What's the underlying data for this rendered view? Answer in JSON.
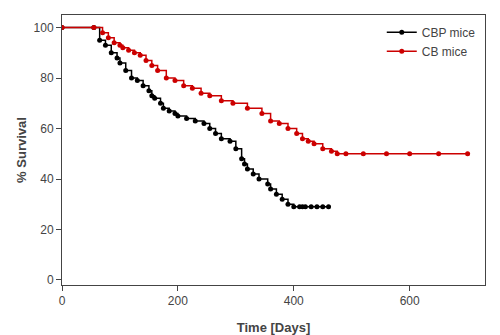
{
  "chart_data": {
    "type": "step",
    "title": "",
    "xlabel": "Time [Days]",
    "ylabel": "% Survival",
    "xlim": [
      0,
      730
    ],
    "ylim": [
      -2,
      105
    ],
    "xticks": [
      0,
      200,
      400,
      600
    ],
    "yticks": [
      0,
      20,
      40,
      60,
      80,
      100
    ],
    "grid": false,
    "legend": "upper right",
    "marker": "circle",
    "series": [
      {
        "name": "CBP mice",
        "color": "#000000",
        "x": [
          0,
          55,
          65,
          75,
          85,
          95,
          100,
          110,
          120,
          130,
          140,
          150,
          155,
          160,
          170,
          175,
          185,
          195,
          200,
          215,
          230,
          245,
          255,
          265,
          275,
          290,
          300,
          310,
          315,
          320,
          330,
          340,
          355,
          360,
          370,
          380,
          390,
          400,
          410,
          415,
          420,
          430,
          440,
          450,
          460
        ],
        "values": [
          100,
          100,
          95,
          93,
          90,
          88,
          86,
          83,
          80,
          79,
          77,
          75,
          73,
          72,
          70,
          68,
          67,
          66,
          65,
          64,
          63,
          62,
          60,
          58,
          56,
          55,
          52,
          48,
          46,
          44,
          42,
          40,
          38,
          36,
          34,
          32,
          30,
          29,
          29,
          29,
          29,
          29,
          29,
          29,
          29
        ]
      },
      {
        "name": "CB mice",
        "color": "#cc0000",
        "x": [
          0,
          55,
          70,
          80,
          90,
          100,
          105,
          115,
          125,
          135,
          145,
          155,
          165,
          180,
          195,
          210,
          225,
          240,
          255,
          275,
          295,
          320,
          345,
          360,
          375,
          390,
          405,
          415,
          425,
          435,
          450,
          465,
          475,
          490,
          520,
          560,
          600,
          650,
          700
        ],
        "values": [
          100,
          100,
          98,
          96,
          94,
          93,
          92,
          91,
          90,
          89,
          87,
          85,
          83,
          80,
          79,
          77,
          76,
          74,
          73,
          71,
          70,
          68,
          66,
          63,
          62,
          60,
          58,
          56,
          55,
          54,
          52,
          51,
          50,
          50,
          50,
          50,
          50,
          50,
          50
        ]
      }
    ]
  }
}
